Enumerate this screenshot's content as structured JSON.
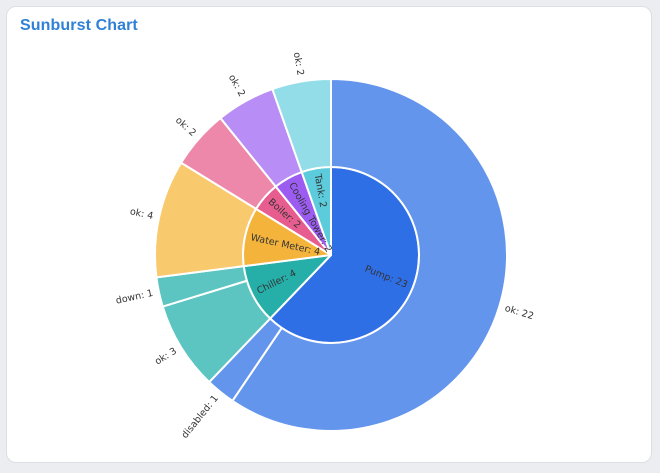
{
  "card": {
    "title": "Sunburst Chart"
  },
  "colors": {
    "border": "#ffffff",
    "title": "#2f80d6"
  },
  "chart_data": {
    "type": "sunburst",
    "title": "Sunburst Chart",
    "label_format": "name: value",
    "inner": [
      {
        "name": "Pump",
        "value": 23,
        "color": "#2f6fe6"
      },
      {
        "name": "Chiller",
        "value": 4,
        "color": "#26aea9"
      },
      {
        "name": "Water Meter",
        "value": 4,
        "color": "#f4b43c"
      },
      {
        "name": "Boiler",
        "value": 2,
        "color": "#e85d8f"
      },
      {
        "name": "Cooling Tower",
        "value": 2,
        "color": "#9c5cf2"
      },
      {
        "name": "Tank",
        "value": 2,
        "color": "#5ccbdb"
      }
    ],
    "outer": [
      {
        "parent": "Pump",
        "name": "ok",
        "value": 22,
        "color": "#6495ed"
      },
      {
        "parent": "Pump",
        "name": "disabled",
        "value": 1,
        "color": "#6495ed"
      },
      {
        "parent": "Chiller",
        "name": "ok",
        "value": 3,
        "color": "#5cc5c1"
      },
      {
        "parent": "Chiller",
        "name": "down",
        "value": 1,
        "color": "#5cc5c1"
      },
      {
        "parent": "Water Meter",
        "name": "ok",
        "value": 4,
        "color": "#f8c96d"
      },
      {
        "parent": "Boiler",
        "name": "ok",
        "value": 2,
        "color": "#ee88ab"
      },
      {
        "parent": "Cooling Tower",
        "name": "ok",
        "value": 2,
        "color": "#b88df5"
      },
      {
        "parent": "Tank",
        "name": "ok",
        "value": 2,
        "color": "#92dde7"
      }
    ]
  }
}
